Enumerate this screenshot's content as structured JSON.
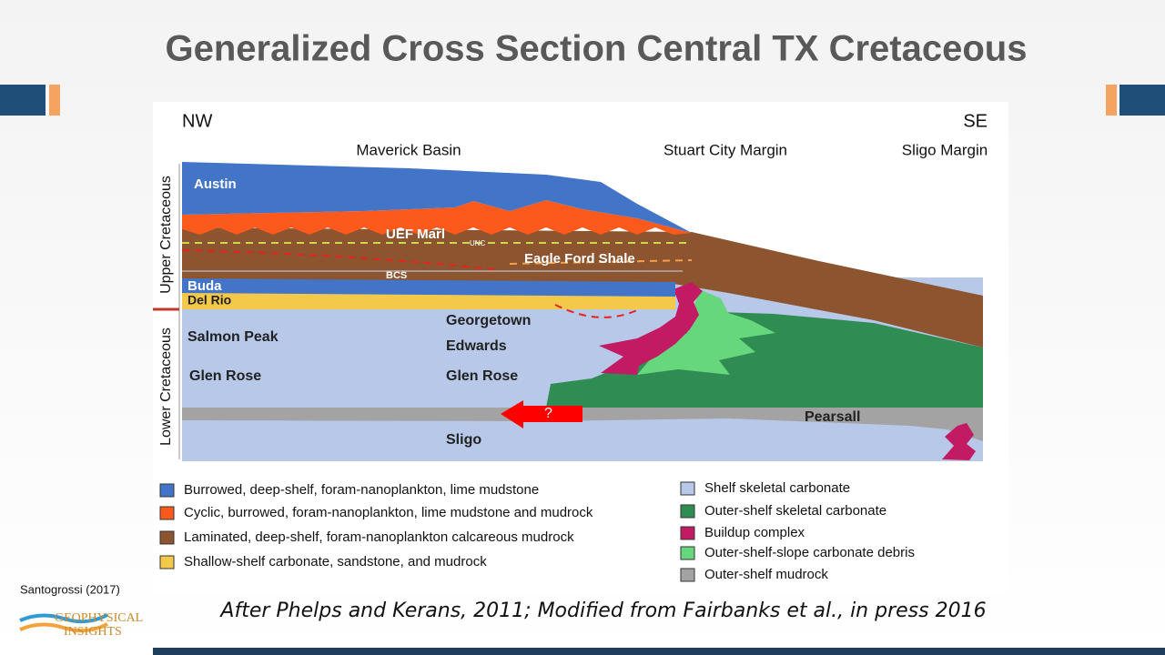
{
  "header": {
    "title": "Generalized Cross Section Central TX Cretaceous"
  },
  "section": {
    "directions": [
      "NW",
      "SE"
    ],
    "regions": [
      "Maverick Basin",
      "Stuart City Margin",
      "Sligo Margin"
    ],
    "periods": [
      "Upper Cretaceous",
      "Lower Cretaceous"
    ],
    "units": [
      "Austin",
      "UEF Marl",
      "UNC",
      "Eagle Ford Shale",
      "BCS",
      "Buda",
      "Del Rio",
      "Salmon Peak",
      "Glen Rose",
      "Georgetown",
      "Edwards",
      "Glen Rose",
      "?",
      "Pearsall",
      "Sligo"
    ]
  },
  "legend": {
    "left": [
      {
        "label": "Burrowed, deep-shelf, foram-nanoplankton, lime mudstone",
        "color": "#4274c8"
      },
      {
        "label": "Cyclic, burrowed, foram-nanoplankton, lime mudstone and mudrock",
        "color": "#fb5a1c"
      },
      {
        "label": "Laminated, deep-shelf, foram-nanoplankton calcareous mudrock",
        "color": "#8c5530"
      },
      {
        "label": "Shallow-shelf carbonate, sandstone, and mudrock",
        "color": "#f4c94a"
      }
    ],
    "right": [
      {
        "label": "Shelf skeletal carbonate",
        "color": "#b7c8e8"
      },
      {
        "label": "Outer-shelf skeletal carbonate",
        "color": "#2f8c52"
      },
      {
        "label": "Buildup complex",
        "color": "#c21a63"
      },
      {
        "label": "Outer-shelf-slope carbonate debris",
        "color": "#66d77c"
      },
      {
        "label": "Outer-shelf mudrock",
        "color": "#a3a3a3"
      }
    ]
  },
  "footer": {
    "source": "Santogrossi (2017)",
    "caption": "After Phelps and Kerans, 2011; Modified from Fairbanks et al., in press 2016",
    "logo": [
      "GEOPHYSICAL",
      "INSIGHTS"
    ]
  }
}
